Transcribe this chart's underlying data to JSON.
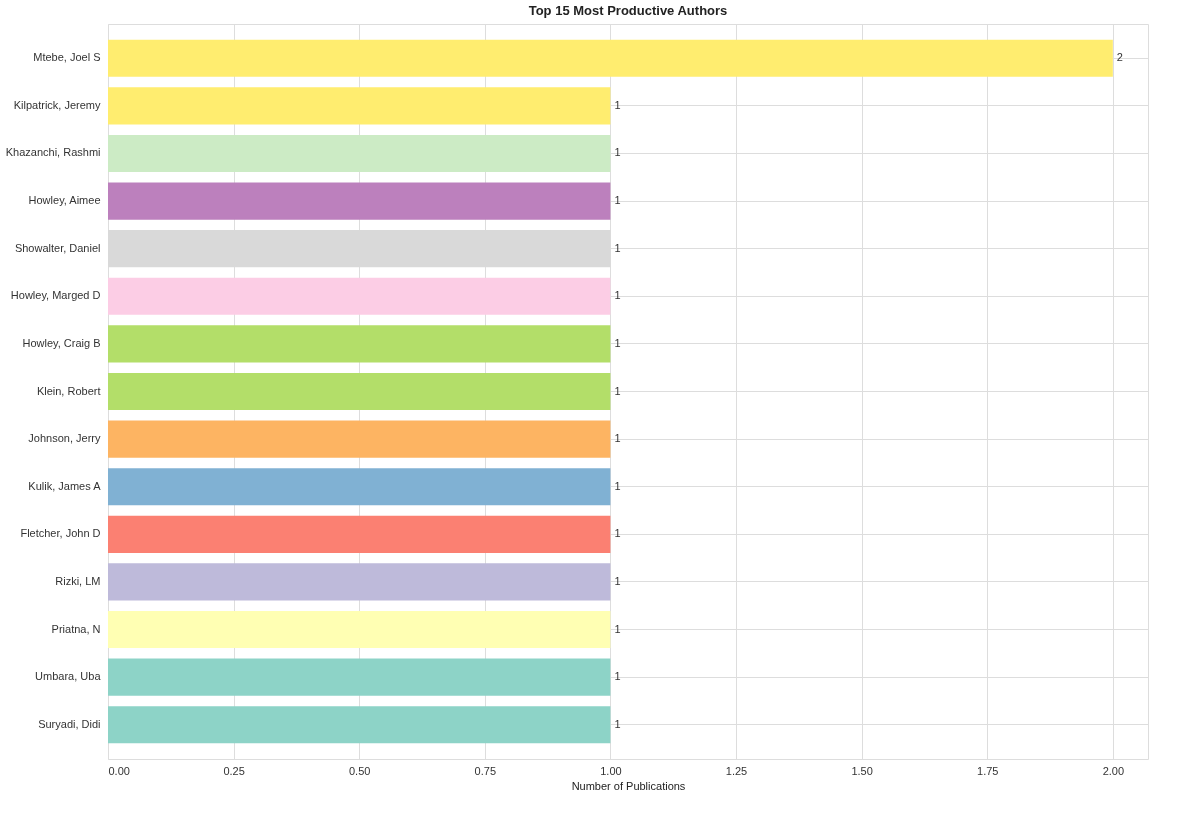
{
  "chart_data": {
    "type": "bar",
    "orientation": "horizontal",
    "title": "Top 15 Most Productive Authors",
    "xlabel": "Number of Publications",
    "categories": [
      "Mtebe, Joel S",
      "Kilpatrick, Jeremy",
      "Khazanchi, Rashmi",
      "Howley, Aimee",
      "Showalter, Daniel",
      "Howley, Marged D",
      "Howley, Craig B",
      "Klein, Robert",
      "Johnson, Jerry",
      "Kulik, James A",
      "Fletcher, John D",
      "Rizki, LM",
      "Priatna, N",
      "Umbara, Uba",
      "Suryadi, Didi"
    ],
    "values": [
      2,
      1,
      1,
      1,
      1,
      1,
      1,
      1,
      1,
      1,
      1,
      1,
      1,
      1,
      1
    ],
    "colors": [
      "#ffed6f",
      "#ffed6f",
      "#ccebc5",
      "#bc80bd",
      "#d9d9d9",
      "#fccde5",
      "#b3de69",
      "#b3de69",
      "#fdb462",
      "#80b1d3",
      "#fb8072",
      "#bebada",
      "#ffffb3",
      "#8dd3c7",
      "#8dd3c7"
    ],
    "xlim": [
      0,
      2.07
    ],
    "xticks": [
      {
        "value": 0,
        "label": "0.00"
      },
      {
        "value": 0.25,
        "label": "0.25"
      },
      {
        "value": 0.5,
        "label": "0.50"
      },
      {
        "value": 0.75,
        "label": "0.75"
      },
      {
        "value": 1,
        "label": "1.00"
      },
      {
        "value": 1.25,
        "label": "1.25"
      },
      {
        "value": 1.5,
        "label": "1.50"
      },
      {
        "value": 1.75,
        "label": "1.75"
      },
      {
        "value": 2,
        "label": "2.00"
      }
    ],
    "grid": true,
    "data_labels": true,
    "legend": false
  }
}
